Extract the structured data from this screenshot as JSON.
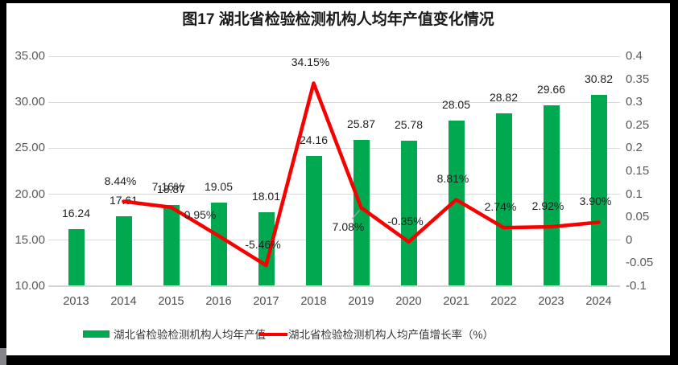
{
  "chart_data": {
    "type": "bar+line combo",
    "title": "图17 湖北省检验检测机构人均年产值变化情况",
    "categories": [
      "2013",
      "2014",
      "2015",
      "2016",
      "2017",
      "2018",
      "2019",
      "2020",
      "2021",
      "2022",
      "2023",
      "2024"
    ],
    "series": [
      {
        "name": "湖北省检验检测机构人均年产值",
        "type": "bar",
        "axis": "left",
        "values": [
          16.24,
          17.61,
          18.87,
          19.05,
          18.01,
          24.16,
          25.87,
          25.78,
          28.05,
          28.82,
          29.66,
          30.82
        ],
        "labels": [
          "16.24",
          "17.61",
          "18.87",
          "19.05",
          "18.01",
          "24.16",
          "25.87",
          "25.78",
          "28.05",
          "28.82",
          "29.66",
          "30.82"
        ]
      },
      {
        "name": "湖北省检验检测机构人均产值增长率（%）",
        "type": "line",
        "axis": "right",
        "values": [
          null,
          8.44,
          7.16,
          0.95,
          -5.46,
          34.15,
          7.08,
          -0.35,
          8.81,
          2.74,
          2.92,
          3.9
        ],
        "labels": [
          null,
          "8.44%",
          "7.16%",
          "0.95%",
          "-5.46%",
          "34.15%",
          "7.08%",
          "-0.35%",
          "8.81%",
          "2.74%",
          "2.92%",
          "3.90%"
        ]
      }
    ],
    "left_axis": {
      "ticks": [
        "35.00",
        "30.00",
        "25.00",
        "20.00",
        "15.00",
        "10.00"
      ],
      "min": 10,
      "max": 35
    },
    "right_axis": {
      "ticks": [
        "0.4",
        "0.35",
        "0.3",
        "0.25",
        "0.2",
        "0.15",
        "0.1",
        "0.05",
        "0",
        "-0.05",
        "-0.1"
      ],
      "min": -0.1,
      "max": 0.4
    },
    "grid": true,
    "legend_position": "bottom",
    "legend": [
      {
        "label": "湖北省检验检测机构人均年产值",
        "marker": "rect",
        "color": "#00A950"
      },
      {
        "label": "湖北省检验检测机构人均产值增长率（%）",
        "marker": "line",
        "color": "#F80000"
      }
    ],
    "colors": {
      "bar": "#00A950",
      "line": "#F80000",
      "grid": "#DADADA",
      "axis_line": "#D4D4D4",
      "tick_text": "#595959",
      "data_label_text": "#1f1f1f",
      "leader_line": "#A8A8A8"
    }
  }
}
